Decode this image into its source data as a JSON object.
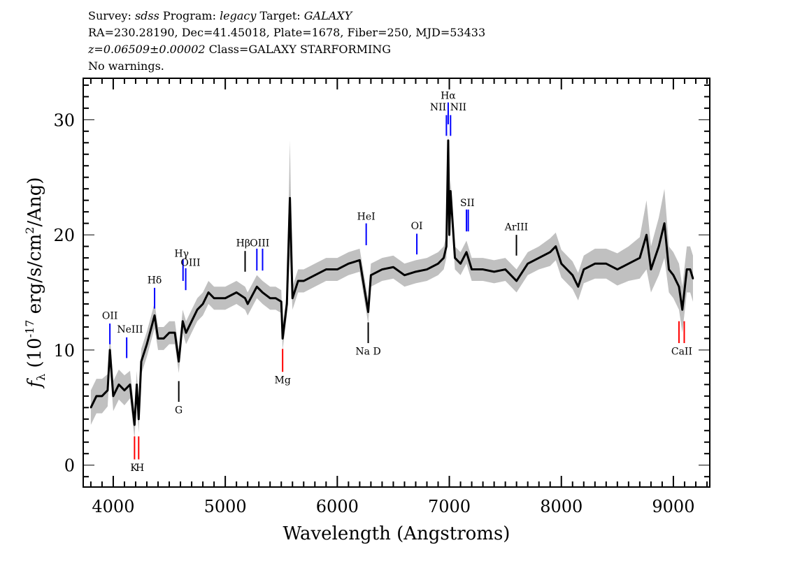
{
  "header": {
    "survey_label": "Survey:",
    "survey": "sdss",
    "program_label": "Program:",
    "program": "legacy",
    "target_label": "Target:",
    "target": "GALAXY",
    "line2": "RA=230.28190, Dec=41.45018, Plate=1678, Fiber=250, MJD=53433",
    "redshift": "z=0.06509±0.00002",
    "class": "Class=GALAXY STARFORMING",
    "warnings": "No warnings."
  },
  "chart_data": {
    "type": "line",
    "xlabel": "Wavelength (Angstroms)",
    "ylabel_main": "f",
    "ylabel_sub": "λ",
    "ylabel_pre": " (10",
    "ylabel_exp": "-17",
    "ylabel_mid": " erg/s/cm",
    "ylabel_exp2": "2",
    "ylabel_post": "/Ang)",
    "xlim": [
      3732,
      9325
    ],
    "ylim": [
      -1.9,
      33.6
    ],
    "xticks": [
      4000,
      5000,
      6000,
      7000,
      8000,
      9000
    ],
    "yticks": [
      0,
      10,
      20,
      30
    ],
    "grid": false,
    "colors": {
      "flux": "#000000",
      "error": "#c0c0c0",
      "emission": "#0000ff",
      "absorption": "#ff0000",
      "sky": "#000000"
    },
    "wavelength": [
      3800,
      3850,
      3900,
      3950,
      3970,
      4000,
      4050,
      4100,
      4150,
      4190,
      4210,
      4227,
      4250,
      4300,
      4369,
      4400,
      4450,
      4500,
      4550,
      4585,
      4620,
      4650,
      4700,
      4750,
      4800,
      4850,
      4900,
      5000,
      5100,
      5177,
      5200,
      5282,
      5333,
      5400,
      5450,
      5500,
      5512,
      5550,
      5577,
      5600,
      5650,
      5700,
      5800,
      5900,
      6000,
      6100,
      6200,
      6276,
      6300,
      6400,
      6500,
      6600,
      6700,
      6800,
      6900,
      6950,
      6974,
      6990,
      7000,
      7011,
      7050,
      7100,
      7153,
      7169,
      7200,
      7300,
      7400,
      7500,
      7600,
      7700,
      7800,
      7900,
      7950,
      8000,
      8100,
      8150,
      8200,
      8300,
      8400,
      8500,
      8600,
      8700,
      8760,
      8800,
      8870,
      8920,
      8960,
      9000,
      9050,
      9080,
      9120,
      9150,
      9175
    ],
    "flux": [
      5,
      6,
      6,
      6.5,
      10,
      6,
      7,
      6.5,
      7,
      3.5,
      7,
      4,
      9,
      10.5,
      13,
      11,
      11,
      11.5,
      11.5,
      9,
      12.5,
      11.5,
      12.5,
      13.5,
      14,
      15,
      14.5,
      14.5,
      15,
      14.5,
      14,
      15.5,
      15,
      14.5,
      14.5,
      14.2,
      11,
      14,
      23.2,
      14.5,
      16,
      16,
      16.5,
      17,
      17,
      17.5,
      17.8,
      13.3,
      16.5,
      17,
      17.2,
      16.5,
      16.8,
      17,
      17.5,
      18,
      19,
      28.2,
      20,
      23.8,
      18,
      17.5,
      18.5,
      18,
      17,
      17,
      16.8,
      17,
      16,
      17.5,
      18,
      18.5,
      19,
      17.5,
      16.5,
      15.5,
      17,
      17.5,
      17.5,
      17,
      17.5,
      18,
      20,
      17,
      19,
      21,
      17,
      16.5,
      15.5,
      13.5,
      17,
      17,
      16.2
    ],
    "flux_error": [
      1.5,
      1.5,
      1.5,
      1.4,
      1.4,
      1.3,
      1.3,
      1.3,
      1.2,
      1.2,
      1.2,
      1.2,
      1.1,
      1.1,
      1.1,
      1,
      1,
      1,
      1,
      1,
      1,
      1,
      1,
      1,
      1,
      1,
      1,
      1,
      1,
      1,
      1,
      1,
      1,
      1,
      1,
      1,
      1,
      1,
      5,
      1,
      1,
      1,
      1,
      1,
      1,
      1,
      1,
      1,
      1,
      1,
      1,
      1,
      1,
      1,
      1,
      1,
      1,
      1,
      1,
      1,
      1,
      1,
      1,
      1,
      1,
      1,
      1,
      1,
      1,
      1,
      1,
      1.2,
      1.2,
      1.2,
      1.2,
      1.2,
      1.2,
      1.3,
      1.3,
      1.4,
      1.5,
      1.8,
      3,
      2,
      2.5,
      3,
      2,
      2,
      2,
      2,
      2,
      2,
      2
    ],
    "line_markers": [
      {
        "name": "OII",
        "wavelength": 3970,
        "range": [
          10.5,
          12.3
        ],
        "type": "emission"
      },
      {
        "name": "NeIII",
        "wavelength": 4120,
        "range": [
          9.3,
          11.1
        ],
        "type": "emission"
      },
      {
        "name": "K",
        "wavelength": 4190,
        "range": [
          0.5,
          2.5
        ],
        "type": "absorption"
      },
      {
        "name": "H",
        "wavelength": 4227,
        "range": [
          0.5,
          2.5
        ],
        "type": "absorption"
      },
      {
        "name": "Hδ",
        "wavelength": 4369,
        "range": [
          13.6,
          15.4
        ],
        "type": "emission"
      },
      {
        "name": "G",
        "wavelength": 4585,
        "range": [
          5.5,
          7.3
        ],
        "type": "sky"
      },
      {
        "name": "Hγ",
        "wavelength": 4623,
        "range": [
          16.0,
          17.9
        ],
        "type": "emission"
      },
      {
        "name": "OIII",
        "wavelength": 4647,
        "range": [
          15.2,
          17.1
        ],
        "type": "emission"
      },
      {
        "name": "Hβ",
        "wavelength": 5177,
        "range": [
          16.8,
          18.6
        ],
        "type": "sky"
      },
      {
        "name": "OIII",
        "wavelength": 5282,
        "range": [
          16.9,
          18.8
        ],
        "type": "emission"
      },
      {
        "name": "OIII",
        "wavelength": 5333,
        "range": [
          16.9,
          18.8
        ],
        "type": "emission"
      },
      {
        "name": "Mg",
        "wavelength": 5512,
        "range": [
          8.1,
          10.1
        ],
        "type": "absorption"
      },
      {
        "name": "HeI",
        "wavelength": 6258,
        "range": [
          19.1,
          21.0
        ],
        "type": "emission"
      },
      {
        "name": "Na D",
        "wavelength": 6276,
        "range": [
          10.6,
          12.4
        ],
        "type": "sky"
      },
      {
        "name": "OI",
        "wavelength": 6710,
        "range": [
          18.3,
          20.1
        ],
        "type": "emission"
      },
      {
        "name": "NII",
        "wavelength": 6974,
        "range": [
          28.6,
          30.4
        ],
        "type": "emission"
      },
      {
        "name": "Hα",
        "wavelength": 6990,
        "range": [
          29.6,
          31.5
        ],
        "type": "emission"
      },
      {
        "name": "NII",
        "wavelength": 7011,
        "range": [
          28.6,
          30.4
        ],
        "type": "emission"
      },
      {
        "name": "SII",
        "wavelength": 7153,
        "range": [
          20.3,
          22.2
        ],
        "type": "emission"
      },
      {
        "name": "SII",
        "wavelength": 7169,
        "range": [
          20.3,
          22.2
        ],
        "type": "emission"
      },
      {
        "name": "ArIII",
        "wavelength": 7599,
        "range": [
          18.2,
          20.0
        ],
        "type": "sky"
      },
      {
        "name": "CaII",
        "wavelength": 9050,
        "range": [
          10.6,
          12.5
        ],
        "type": "absorption"
      },
      {
        "name": "CaII",
        "wavelength": 9097,
        "range": [
          10.6,
          12.5
        ],
        "type": "absorption"
      }
    ],
    "line_labels": [
      {
        "text": "OII",
        "wavelength": 3970,
        "flux": 13.0
      },
      {
        "text": "NeIII",
        "wavelength": 4150,
        "flux": 11.8
      },
      {
        "text": "K",
        "wavelength": 4185,
        "flux": -0.2
      },
      {
        "text": "H",
        "wavelength": 4238,
        "flux": -0.2
      },
      {
        "text": "Hδ",
        "wavelength": 4369,
        "flux": 16.1
      },
      {
        "text": "G",
        "wavelength": 4585,
        "flux": 4.8
      },
      {
        "text": "Hγ",
        "wavelength": 4610,
        "flux": 18.4
      },
      {
        "text": "OIII",
        "wavelength": 4690,
        "flux": 17.6
      },
      {
        "text": "Hβ",
        "wavelength": 5160,
        "flux": 19.3
      },
      {
        "text": "OIII",
        "wavelength": 5307,
        "flux": 19.3
      },
      {
        "text": "Mg",
        "wavelength": 5512,
        "flux": 7.4
      },
      {
        "text": "HeI",
        "wavelength": 6258,
        "flux": 21.6
      },
      {
        "text": "Na  D",
        "wavelength": 6276,
        "flux": 9.9
      },
      {
        "text": "OI",
        "wavelength": 6710,
        "flux": 20.8
      },
      {
        "text": "NII",
        "wavelength": 6900,
        "flux": 31.1
      },
      {
        "text": "Hα",
        "wavelength": 6990,
        "flux": 32.1
      },
      {
        "text": "NII",
        "wavelength": 7080,
        "flux": 31.1
      },
      {
        "text": "SII",
        "wavelength": 7161,
        "flux": 22.8
      },
      {
        "text": "ArIII",
        "wavelength": 7599,
        "flux": 20.7
      },
      {
        "text": "CaII",
        "wavelength": 9075,
        "flux": 9.9
      }
    ]
  }
}
